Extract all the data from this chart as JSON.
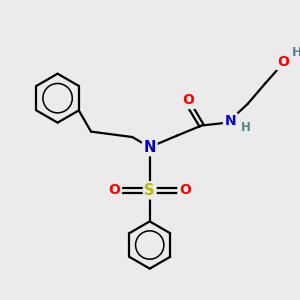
{
  "background_color": "#ebebeb",
  "atom_colors": {
    "C": "#000000",
    "N": "#0000cc",
    "O": "#ff0000",
    "S": "#bbbb00",
    "H": "#558888"
  },
  "bond_color": "#000000",
  "bond_width": 1.6,
  "figsize": [
    3.0,
    3.0
  ],
  "dpi": 100,
  "xlim": [
    0,
    10
  ],
  "ylim": [
    0,
    10
  ]
}
